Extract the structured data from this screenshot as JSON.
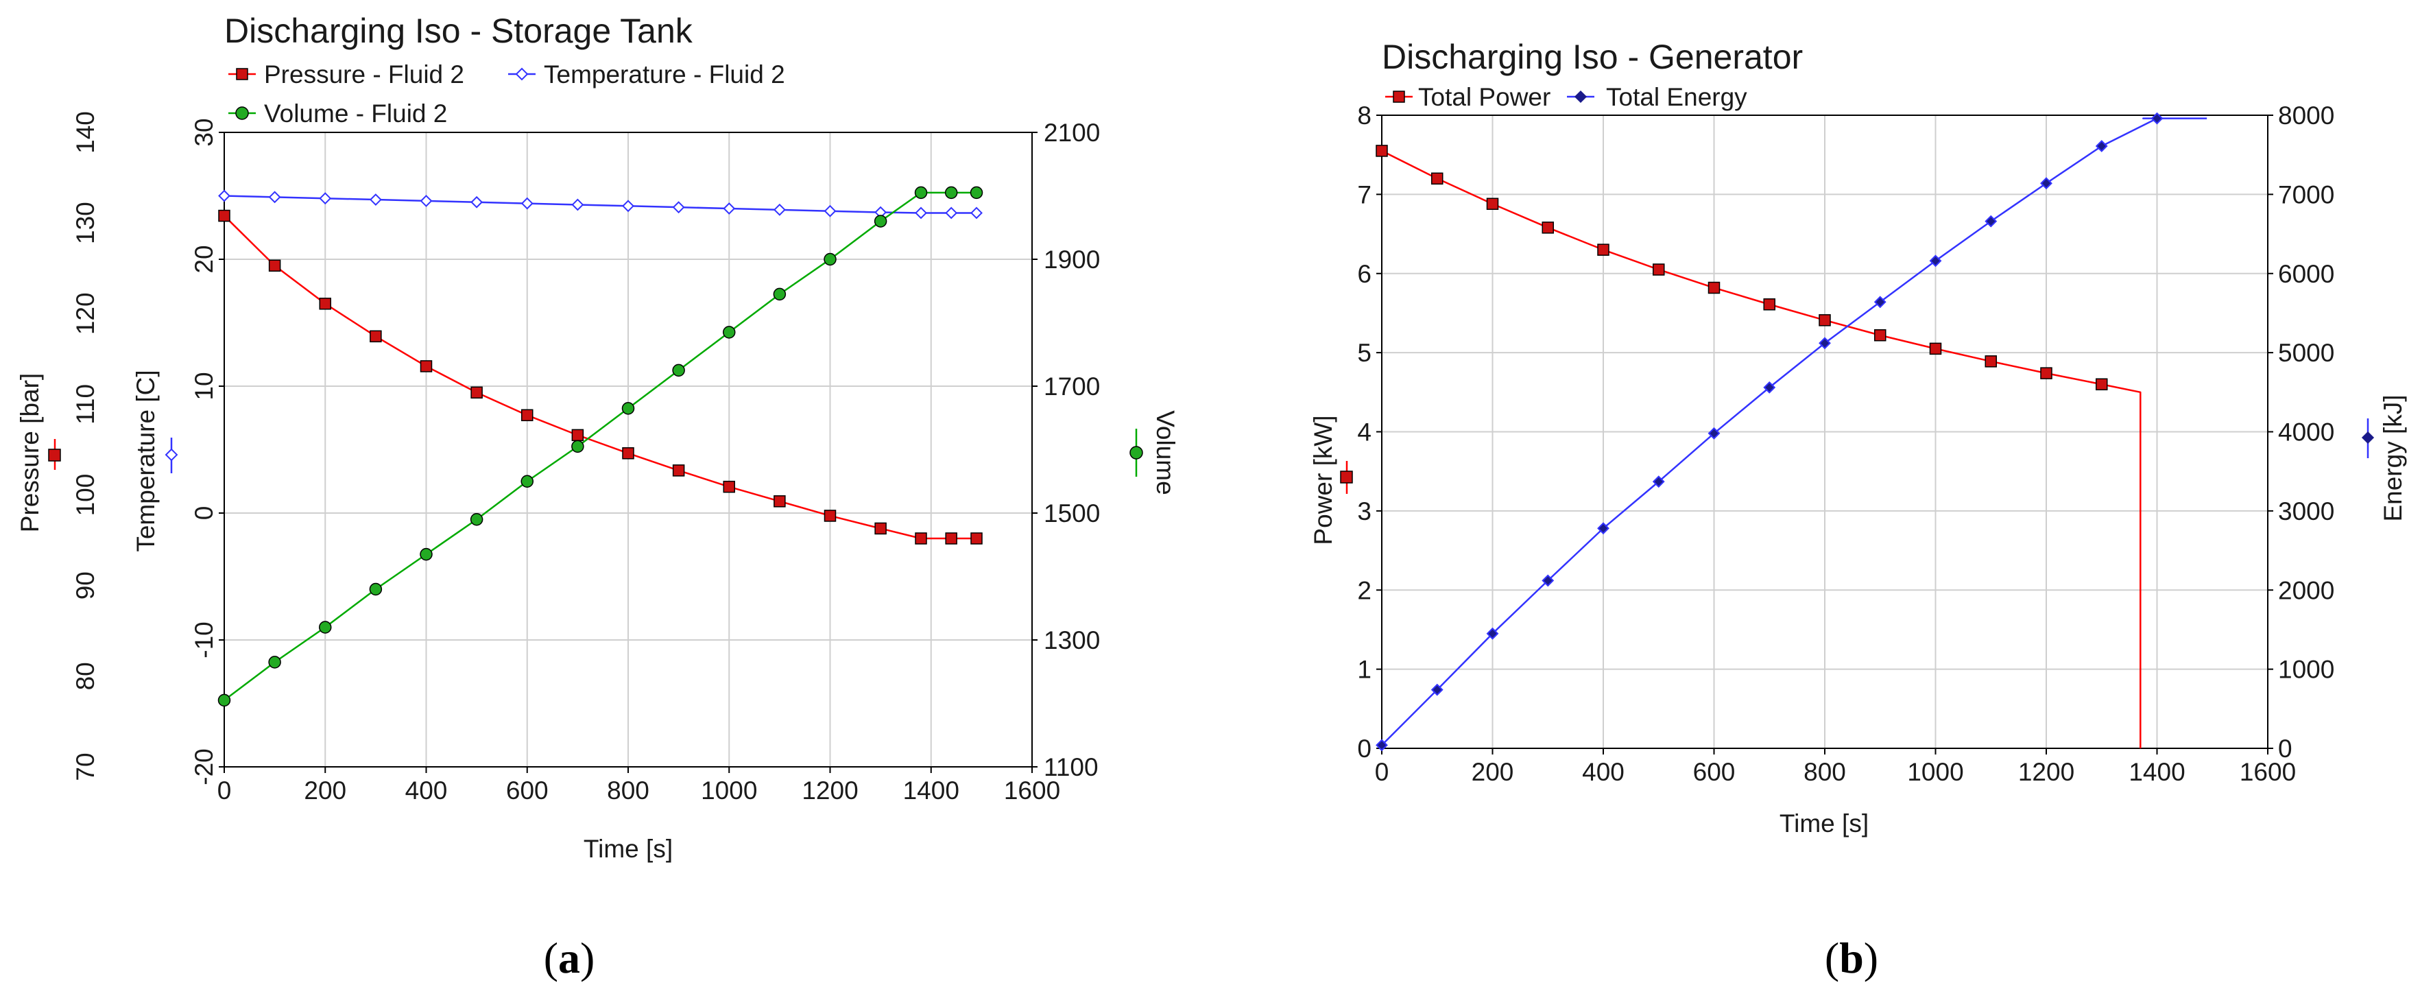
{
  "chart_data": [
    {
      "type": "line",
      "panel": "(a)",
      "title": "Discharging Iso - Storage Tank",
      "xlabel": "Time [s]",
      "xlim": [
        0,
        1600
      ],
      "xticks": [
        0,
        200,
        400,
        600,
        800,
        1000,
        1200,
        1400,
        1600
      ],
      "legend": [
        "Pressure - Fluid 2",
        "Temperature - Fluid 2",
        "Volume - Fluid 2"
      ],
      "axes": {
        "pressure": {
          "label": "Pressure [bar]",
          "ylim": [
            70,
            140
          ],
          "ticks": [
            70,
            80,
            90,
            100,
            110,
            120,
            130,
            140
          ]
        },
        "temperature": {
          "label": "Temperature [C]",
          "ylim": [
            -20,
            30
          ],
          "ticks": [
            -20,
            -10,
            0,
            10,
            20,
            30
          ]
        },
        "volume": {
          "label": "Volume",
          "ylim": [
            1100,
            2100
          ],
          "ticks": [
            1100,
            1300,
            1500,
            1700,
            1900,
            2100
          ]
        }
      },
      "series": [
        {
          "name": "Pressure - Fluid 2",
          "axis": "pressure",
          "color": "#ff0000",
          "fill": "#cc1111",
          "marker": "square",
          "x": [
            0,
            100,
            200,
            300,
            400,
            500,
            600,
            700,
            800,
            900,
            1000,
            1100,
            1200,
            1300,
            1380,
            1440,
            1490
          ],
          "y": [
            130.8,
            125.3,
            121.1,
            117.5,
            114.2,
            111.3,
            108.8,
            106.6,
            104.6,
            102.7,
            100.9,
            99.3,
            97.7,
            96.3,
            95.2,
            95.2,
            95.2
          ]
        },
        {
          "name": "Temperature - Fluid 2",
          "axis": "temperature",
          "color": "#3333ff",
          "fill": "#ffffff",
          "marker": "diamond",
          "x": [
            0,
            100,
            200,
            300,
            400,
            500,
            600,
            700,
            800,
            900,
            1000,
            1100,
            1200,
            1300,
            1380,
            1440,
            1490
          ],
          "y": [
            25.0,
            24.9,
            24.8,
            24.7,
            24.6,
            24.5,
            24.4,
            24.3,
            24.2,
            24.1,
            24.0,
            23.9,
            23.8,
            23.7,
            23.65,
            23.65,
            23.65
          ]
        },
        {
          "name": "Volume - Fluid 2",
          "axis": "volume",
          "color": "#00aa00",
          "fill": "#22aa22",
          "marker": "circle",
          "x": [
            0,
            100,
            200,
            300,
            400,
            500,
            600,
            700,
            800,
            900,
            1000,
            1100,
            1200,
            1300,
            1380,
            1440,
            1490
          ],
          "y": [
            1205,
            1265,
            1320,
            1380,
            1435,
            1490,
            1550,
            1605,
            1665,
            1725,
            1785,
            1845,
            1900,
            1960,
            2005,
            2005,
            2005
          ]
        }
      ]
    },
    {
      "type": "line",
      "panel": "(b)",
      "title": "Discharging Iso - Generator",
      "xlabel": "Time [s]",
      "xlim": [
        0,
        1600
      ],
      "xticks": [
        0,
        200,
        400,
        600,
        800,
        1000,
        1200,
        1400,
        1600
      ],
      "legend": [
        "Total Power",
        "Total Energy"
      ],
      "axes": {
        "power": {
          "label": "Power [kW]",
          "ylim": [
            0,
            8
          ],
          "ticks": [
            0,
            1,
            2,
            3,
            4,
            5,
            6,
            7,
            8
          ]
        },
        "energy": {
          "label": "Energy [kJ]",
          "ylim": [
            0,
            8000
          ],
          "ticks": [
            0,
            1000,
            2000,
            3000,
            4000,
            5000,
            6000,
            7000,
            8000
          ]
        }
      },
      "series": [
        {
          "name": "Total Power",
          "axis": "power",
          "color": "#ff0000",
          "fill": "#cc1111",
          "marker": "square",
          "x": [
            0,
            100,
            200,
            300,
            400,
            500,
            600,
            700,
            800,
            900,
            1000,
            1100,
            1200,
            1300
          ],
          "y": [
            7.55,
            7.2,
            6.88,
            6.58,
            6.3,
            6.05,
            5.82,
            5.61,
            5.41,
            5.22,
            5.05,
            4.89,
            4.74,
            4.6
          ],
          "tail": [
            [
              1370,
              4.5
            ],
            [
              1370,
              0
            ]
          ]
        },
        {
          "name": "Total Energy",
          "axis": "energy",
          "color": "#3333ff",
          "fill": "#1a1a8a",
          "marker": "diamond",
          "x": [
            0,
            100,
            200,
            300,
            400,
            500,
            600,
            700,
            800,
            900,
            1000,
            1100,
            1200,
            1300,
            1400
          ],
          "y": [
            40,
            740,
            1450,
            2120,
            2780,
            3370,
            3980,
            4560,
            5120,
            5640,
            6160,
            6660,
            7140,
            7610,
            7960
          ],
          "tail": [
            [
              1375,
              7960
            ],
            [
              1490,
              7960
            ]
          ]
        }
      ]
    }
  ],
  "captions": {
    "a": "a",
    "b": "b"
  }
}
